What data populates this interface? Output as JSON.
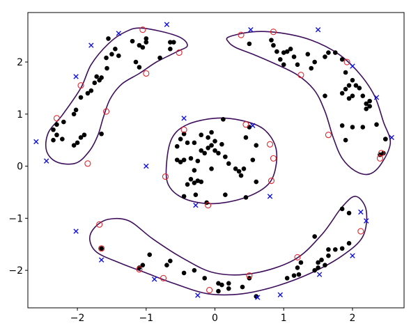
{
  "chart_data": {
    "type": "scatter",
    "title": "",
    "xlabel": "",
    "ylabel": "",
    "xlim": [
      -2.72,
      2.75
    ],
    "ylim": [
      -2.72,
      2.95
    ],
    "grid": false,
    "x_ticks": [
      -2,
      -1,
      0,
      1,
      2
    ],
    "y_ticks": [
      -2,
      -1,
      0,
      1,
      2
    ],
    "x_tick_labels": [
      "−2",
      "−1",
      "0",
      "1",
      "2"
    ],
    "y_tick_labels": [
      "−2",
      "−1",
      "0",
      "1",
      "2"
    ],
    "colors": {
      "inliers": "#000000",
      "support_vectors": "#e3242b",
      "outliers": "#1010e0",
      "boundary": "#3d0e5c"
    },
    "series": [
      {
        "marker": "dot",
        "points": [
          [
            -1.55,
            2.45
          ],
          [
            -1.0,
            2.45
          ],
          [
            -1.0,
            2.38
          ],
          [
            -1.05,
            2.28
          ],
          [
            -1.1,
            2.32
          ],
          [
            -1.2,
            2.4
          ],
          [
            -1.45,
            2.25
          ],
          [
            -1.5,
            2.15
          ],
          [
            -1.4,
            2.12
          ],
          [
            -1.58,
            2.08
          ],
          [
            -1.57,
            1.88
          ],
          [
            -1.65,
            1.7
          ],
          [
            -1.68,
            1.65
          ],
          [
            -1.72,
            1.72
          ],
          [
            -1.75,
            1.6
          ],
          [
            -1.8,
            1.45
          ],
          [
            -1.85,
            1.4
          ],
          [
            -1.95,
            1.32
          ],
          [
            -2.02,
            1.08
          ],
          [
            -2.05,
            1.0
          ],
          [
            -2.2,
            0.85
          ],
          [
            -2.3,
            0.8
          ],
          [
            -2.35,
            0.7
          ],
          [
            -2.3,
            0.6
          ],
          [
            -2.35,
            0.5
          ],
          [
            -2.22,
            0.52
          ],
          [
            -2.05,
            0.4
          ],
          [
            -2.0,
            0.45
          ],
          [
            -1.95,
            0.55
          ],
          [
            -1.9,
            0.6
          ],
          [
            -1.65,
            0.62
          ],
          [
            -1.15,
            2.0
          ],
          [
            -1.1,
            1.9
          ],
          [
            -0.65,
            2.38
          ],
          [
            -0.6,
            2.38
          ],
          [
            -0.65,
            2.25
          ],
          [
            -0.8,
            2.08
          ],
          [
            0.5,
            2.35
          ],
          [
            0.82,
            2.42
          ],
          [
            0.85,
            2.32
          ],
          [
            0.9,
            2.2
          ],
          [
            0.95,
            2.05
          ],
          [
            1.0,
            1.95
          ],
          [
            1.0,
            2.18
          ],
          [
            1.05,
            2.2
          ],
          [
            1.1,
            2.25
          ],
          [
            1.15,
            2.1
          ],
          [
            1.2,
            1.95
          ],
          [
            1.35,
            2.15
          ],
          [
            1.45,
            2.0
          ],
          [
            1.4,
            1.88
          ],
          [
            1.6,
            2.1
          ],
          [
            1.65,
            2.18
          ],
          [
            1.75,
            2.18
          ],
          [
            1.85,
            2.05
          ],
          [
            1.9,
            1.8
          ],
          [
            1.95,
            1.55
          ],
          [
            2.0,
            1.65
          ],
          [
            2.05,
            1.55
          ],
          [
            1.9,
            1.48
          ],
          [
            1.85,
            1.4
          ],
          [
            1.95,
            1.3
          ],
          [
            2.0,
            1.35
          ],
          [
            2.1,
            1.5
          ],
          [
            2.15,
            1.35
          ],
          [
            2.2,
            1.2
          ],
          [
            2.25,
            1.25
          ],
          [
            2.2,
            1.1
          ],
          [
            2.25,
            1.15
          ],
          [
            2.35,
            0.8
          ],
          [
            1.85,
            0.78
          ],
          [
            2.0,
            0.75
          ],
          [
            2.15,
            0.75
          ],
          [
            1.9,
            0.5
          ],
          [
            1.6,
            1.35
          ],
          [
            2.4,
            0.22
          ],
          [
            2.48,
            0.52
          ],
          [
            2.45,
            0.25
          ],
          [
            2.48,
            0.52
          ],
          [
            -0.45,
            0.62
          ],
          [
            -0.5,
            0.52
          ],
          [
            -0.55,
            0.38
          ],
          [
            -0.4,
            0.45
          ],
          [
            -0.3,
            0.45
          ],
          [
            -0.2,
            0.6
          ],
          [
            -0.1,
            0.55
          ],
          [
            -0.05,
            0.65
          ],
          [
            0.12,
            0.9
          ],
          [
            0.1,
            0.42
          ],
          [
            0.0,
            0.48
          ],
          [
            -0.05,
            0.4
          ],
          [
            -0.1,
            0.35
          ],
          [
            -0.15,
            0.25
          ],
          [
            -0.2,
            0.3
          ],
          [
            -0.25,
            0.1
          ],
          [
            -0.35,
            0.15
          ],
          [
            -0.45,
            0.12
          ],
          [
            -0.5,
            0.08
          ],
          [
            -0.55,
            0.12
          ],
          [
            -0.3,
            -0.08
          ],
          [
            -0.35,
            -0.25
          ],
          [
            -0.25,
            -0.28
          ],
          [
            -0.2,
            -0.3
          ],
          [
            -0.3,
            -0.32
          ],
          [
            -0.4,
            -0.35
          ],
          [
            -0.05,
            -0.05
          ],
          [
            0.05,
            0.25
          ],
          [
            0.0,
            0.3
          ],
          [
            0.15,
            0.18
          ],
          [
            0.2,
            0.05
          ],
          [
            0.3,
            -0.05
          ],
          [
            0.35,
            -0.1
          ],
          [
            0.38,
            -0.18
          ],
          [
            0.42,
            -0.05
          ],
          [
            0.55,
            0.12
          ],
          [
            0.6,
            0.4
          ],
          [
            0.5,
            0.75
          ],
          [
            0.45,
            0.55
          ],
          [
            0.15,
            -0.55
          ],
          [
            0.45,
            -0.6
          ],
          [
            0.6,
            -0.3
          ],
          [
            -0.28,
            -0.55
          ],
          [
            -0.45,
            -0.58
          ],
          [
            -0.12,
            -0.7
          ],
          [
            -1.65,
            -1.58
          ],
          [
            -1.05,
            -1.9
          ],
          [
            -1.1,
            -1.95
          ],
          [
            -0.95,
            -1.7
          ],
          [
            -0.7,
            -1.9
          ],
          [
            -0.65,
            -1.82
          ],
          [
            -0.45,
            -2.05
          ],
          [
            -0.3,
            -2.0
          ],
          [
            -0.15,
            -2.15
          ],
          [
            0.05,
            -2.25
          ],
          [
            0.1,
            -2.28
          ],
          [
            0.2,
            -2.25
          ],
          [
            0.2,
            -2.35
          ],
          [
            0.05,
            -2.4
          ],
          [
            0.4,
            -2.32
          ],
          [
            0.5,
            -2.15
          ],
          [
            0.6,
            -2.5
          ],
          [
            1.05,
            -2.15
          ],
          [
            1.15,
            -2.1
          ],
          [
            1.2,
            -1.95
          ],
          [
            1.22,
            -2.08
          ],
          [
            1.25,
            -1.85
          ],
          [
            1.45,
            -2.0
          ],
          [
            1.5,
            -1.95
          ],
          [
            1.45,
            -1.35
          ],
          [
            1.5,
            -1.85
          ],
          [
            1.55,
            -1.8
          ],
          [
            1.6,
            -1.9
          ],
          [
            1.65,
            -1.72
          ],
          [
            1.75,
            -1.6
          ],
          [
            1.85,
            -1.58
          ],
          [
            1.65,
            -1.6
          ],
          [
            1.85,
            -0.82
          ],
          [
            1.95,
            -0.9
          ],
          [
            1.95,
            -1.48
          ]
        ]
      },
      {
        "marker": "open-circle",
        "points": [
          [
            -1.05,
            2.62
          ],
          [
            -0.52,
            2.18
          ],
          [
            -1.0,
            1.78
          ],
          [
            -1.95,
            1.55
          ],
          [
            -1.58,
            1.05
          ],
          [
            -2.3,
            0.92
          ],
          [
            -1.85,
            0.05
          ],
          [
            0.38,
            2.52
          ],
          [
            0.85,
            2.58
          ],
          [
            1.25,
            1.75
          ],
          [
            1.92,
            2.0
          ],
          [
            1.65,
            0.6
          ],
          [
            2.4,
            0.15
          ],
          [
            2.42,
            0.25
          ],
          [
            -0.45,
            0.7
          ],
          [
            0.45,
            0.8
          ],
          [
            0.8,
            0.42
          ],
          [
            0.85,
            0.15
          ],
          [
            0.82,
            -0.28
          ],
          [
            -0.72,
            -0.2
          ],
          [
            -0.1,
            -0.75
          ],
          [
            -1.68,
            -1.12
          ],
          [
            -1.65,
            -1.58
          ],
          [
            -1.1,
            -1.98
          ],
          [
            -0.75,
            -2.15
          ],
          [
            -0.08,
            -2.38
          ],
          [
            0.5,
            -2.1
          ],
          [
            1.2,
            -1.75
          ],
          [
            2.12,
            -1.25
          ]
        ]
      },
      {
        "marker": "x",
        "points": [
          [
            -0.7,
            2.72
          ],
          [
            -1.4,
            2.55
          ],
          [
            -1.8,
            2.32
          ],
          [
            -2.02,
            1.72
          ],
          [
            -2.6,
            0.47
          ],
          [
            -2.45,
            0.1
          ],
          [
            -1.0,
            0.0
          ],
          [
            -2.02,
            -1.25
          ],
          [
            -1.65,
            -1.8
          ],
          [
            -0.88,
            -2.17
          ],
          [
            -0.25,
            -2.48
          ],
          [
            -0.45,
            0.92
          ],
          [
            -0.28,
            -0.75
          ],
          [
            0.55,
            0.78
          ],
          [
            0.8,
            -0.58
          ],
          [
            0.52,
            2.62
          ],
          [
            1.5,
            2.62
          ],
          [
            2.0,
            1.92
          ],
          [
            2.35,
            1.32
          ],
          [
            2.57,
            0.55
          ],
          [
            2.12,
            -0.88
          ],
          [
            2.2,
            -1.05
          ],
          [
            2.0,
            -1.72
          ],
          [
            1.52,
            -2.08
          ],
          [
            0.95,
            -2.47
          ],
          [
            0.62,
            -2.52
          ]
        ]
      }
    ]
  }
}
